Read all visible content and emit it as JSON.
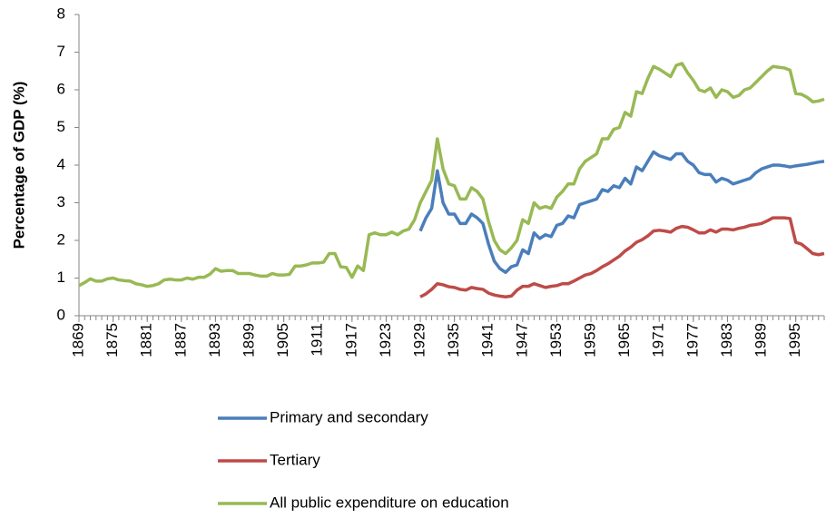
{
  "chart_data": {
    "type": "line",
    "y_label": "Percentage of GDP (%)",
    "x": [
      1869,
      1870,
      1871,
      1872,
      1873,
      1874,
      1875,
      1876,
      1877,
      1878,
      1879,
      1880,
      1881,
      1882,
      1883,
      1884,
      1885,
      1886,
      1887,
      1888,
      1889,
      1890,
      1891,
      1892,
      1893,
      1894,
      1895,
      1896,
      1897,
      1898,
      1899,
      1900,
      1901,
      1902,
      1903,
      1904,
      1905,
      1906,
      1907,
      1908,
      1909,
      1910,
      1911,
      1912,
      1913,
      1914,
      1915,
      1916,
      1917,
      1918,
      1919,
      1920,
      1921,
      1922,
      1923,
      1924,
      1925,
      1926,
      1927,
      1928,
      1929,
      1930,
      1931,
      1932,
      1933,
      1934,
      1935,
      1936,
      1937,
      1938,
      1939,
      1940,
      1941,
      1942,
      1943,
      1944,
      1945,
      1946,
      1947,
      1948,
      1949,
      1950,
      1951,
      1952,
      1953,
      1954,
      1955,
      1956,
      1957,
      1958,
      1959,
      1960,
      1961,
      1962,
      1963,
      1964,
      1965,
      1966,
      1967,
      1968,
      1969,
      1970,
      1971,
      1972,
      1973,
      1974,
      1975,
      1976,
      1977,
      1978,
      1979,
      1980,
      1981,
      1982,
      1983,
      1984,
      1985,
      1986,
      1987,
      1988,
      1989,
      1990,
      1991,
      1992,
      1993,
      1994,
      1995,
      1996,
      1997,
      1998,
      1999,
      2000
    ],
    "series": [
      {
        "name": "Primary and secondary",
        "color": "#4a7ebb",
        "values": [
          null,
          null,
          null,
          null,
          null,
          null,
          null,
          null,
          null,
          null,
          null,
          null,
          null,
          null,
          null,
          null,
          null,
          null,
          null,
          null,
          null,
          null,
          null,
          null,
          null,
          null,
          null,
          null,
          null,
          null,
          null,
          null,
          null,
          null,
          null,
          null,
          null,
          null,
          null,
          null,
          null,
          null,
          null,
          null,
          null,
          null,
          null,
          null,
          null,
          null,
          null,
          null,
          null,
          null,
          null,
          null,
          null,
          null,
          null,
          null,
          2.25,
          2.6,
          2.85,
          3.85,
          3.0,
          2.7,
          2.7,
          2.45,
          2.45,
          2.7,
          2.6,
          2.45,
          1.9,
          1.45,
          1.25,
          1.15,
          1.3,
          1.35,
          1.75,
          1.65,
          2.2,
          2.05,
          2.15,
          2.1,
          2.4,
          2.45,
          2.65,
          2.6,
          2.95,
          3.0,
          3.05,
          3.1,
          3.35,
          3.3,
          3.45,
          3.4,
          3.65,
          3.5,
          3.95,
          3.85,
          4.1,
          4.35,
          4.25,
          4.2,
          4.15,
          4.3,
          4.3,
          4.1,
          4.0,
          3.8,
          3.75,
          3.75,
          3.55,
          3.65,
          3.6,
          3.5,
          3.55,
          3.6,
          3.65,
          3.8,
          3.9,
          3.95,
          4.0,
          4.0,
          3.98,
          3.95,
          3.98,
          4.0,
          4.02,
          4.05,
          4.08,
          4.1
        ]
      },
      {
        "name": "Tertiary",
        "color": "#be4b48",
        "values": [
          null,
          null,
          null,
          null,
          null,
          null,
          null,
          null,
          null,
          null,
          null,
          null,
          null,
          null,
          null,
          null,
          null,
          null,
          null,
          null,
          null,
          null,
          null,
          null,
          null,
          null,
          null,
          null,
          null,
          null,
          null,
          null,
          null,
          null,
          null,
          null,
          null,
          null,
          null,
          null,
          null,
          null,
          null,
          null,
          null,
          null,
          null,
          null,
          null,
          null,
          null,
          null,
          null,
          null,
          null,
          null,
          null,
          null,
          null,
          null,
          0.5,
          0.58,
          0.7,
          0.85,
          0.82,
          0.77,
          0.75,
          0.7,
          0.68,
          0.75,
          0.72,
          0.7,
          0.6,
          0.55,
          0.52,
          0.5,
          0.52,
          0.68,
          0.78,
          0.78,
          0.85,
          0.8,
          0.75,
          0.78,
          0.8,
          0.85,
          0.85,
          0.92,
          1.0,
          1.08,
          1.12,
          1.2,
          1.3,
          1.38,
          1.48,
          1.58,
          1.72,
          1.82,
          1.95,
          2.02,
          2.12,
          2.25,
          2.27,
          2.25,
          2.22,
          2.32,
          2.37,
          2.35,
          2.28,
          2.2,
          2.2,
          2.28,
          2.22,
          2.3,
          2.3,
          2.28,
          2.32,
          2.35,
          2.4,
          2.42,
          2.45,
          2.52,
          2.6,
          2.6,
          2.6,
          2.58,
          1.95,
          1.9,
          1.78,
          1.65,
          1.62,
          1.65
        ]
      },
      {
        "name": "All public expenditure on education",
        "color": "#98b954",
        "values": [
          0.8,
          0.88,
          0.98,
          0.92,
          0.92,
          0.98,
          1.0,
          0.95,
          0.93,
          0.92,
          0.85,
          0.82,
          0.78,
          0.8,
          0.85,
          0.95,
          0.97,
          0.95,
          0.95,
          1.0,
          0.97,
          1.02,
          1.02,
          1.1,
          1.25,
          1.18,
          1.2,
          1.2,
          1.12,
          1.12,
          1.12,
          1.08,
          1.05,
          1.05,
          1.12,
          1.08,
          1.08,
          1.1,
          1.32,
          1.32,
          1.35,
          1.4,
          1.4,
          1.42,
          1.65,
          1.65,
          1.3,
          1.28,
          1.02,
          1.32,
          1.2,
          2.15,
          2.2,
          2.15,
          2.15,
          2.22,
          2.15,
          2.25,
          2.3,
          2.55,
          3.0,
          3.3,
          3.6,
          4.7,
          3.9,
          3.5,
          3.45,
          3.1,
          3.1,
          3.4,
          3.3,
          3.1,
          2.5,
          2.0,
          1.75,
          1.65,
          1.8,
          2.0,
          2.55,
          2.45,
          3.0,
          2.85,
          2.9,
          2.85,
          3.15,
          3.3,
          3.5,
          3.5,
          3.9,
          4.1,
          4.2,
          4.3,
          4.7,
          4.7,
          4.95,
          5.0,
          5.4,
          5.3,
          5.95,
          5.9,
          6.3,
          6.62,
          6.55,
          6.45,
          6.35,
          6.65,
          6.7,
          6.45,
          6.25,
          6.0,
          5.95,
          6.05,
          5.8,
          6.0,
          5.95,
          5.8,
          5.85,
          6.0,
          6.05,
          6.2,
          6.35,
          6.5,
          6.62,
          6.6,
          6.58,
          6.52,
          5.9,
          5.88,
          5.8,
          5.68,
          5.7,
          5.75
        ]
      }
    ],
    "xlim": [
      1869,
      2000
    ],
    "xticks": [
      1869,
      1875,
      1881,
      1887,
      1893,
      1899,
      1905,
      1911,
      1917,
      1923,
      1929,
      1935,
      1941,
      1947,
      1953,
      1959,
      1965,
      1971,
      1977,
      1983,
      1989,
      1995
    ],
    "ylim": [
      0,
      8
    ],
    "yticks": [
      0,
      1,
      2,
      3,
      4,
      5,
      6,
      7,
      8
    ],
    "legend": "bottom"
  }
}
